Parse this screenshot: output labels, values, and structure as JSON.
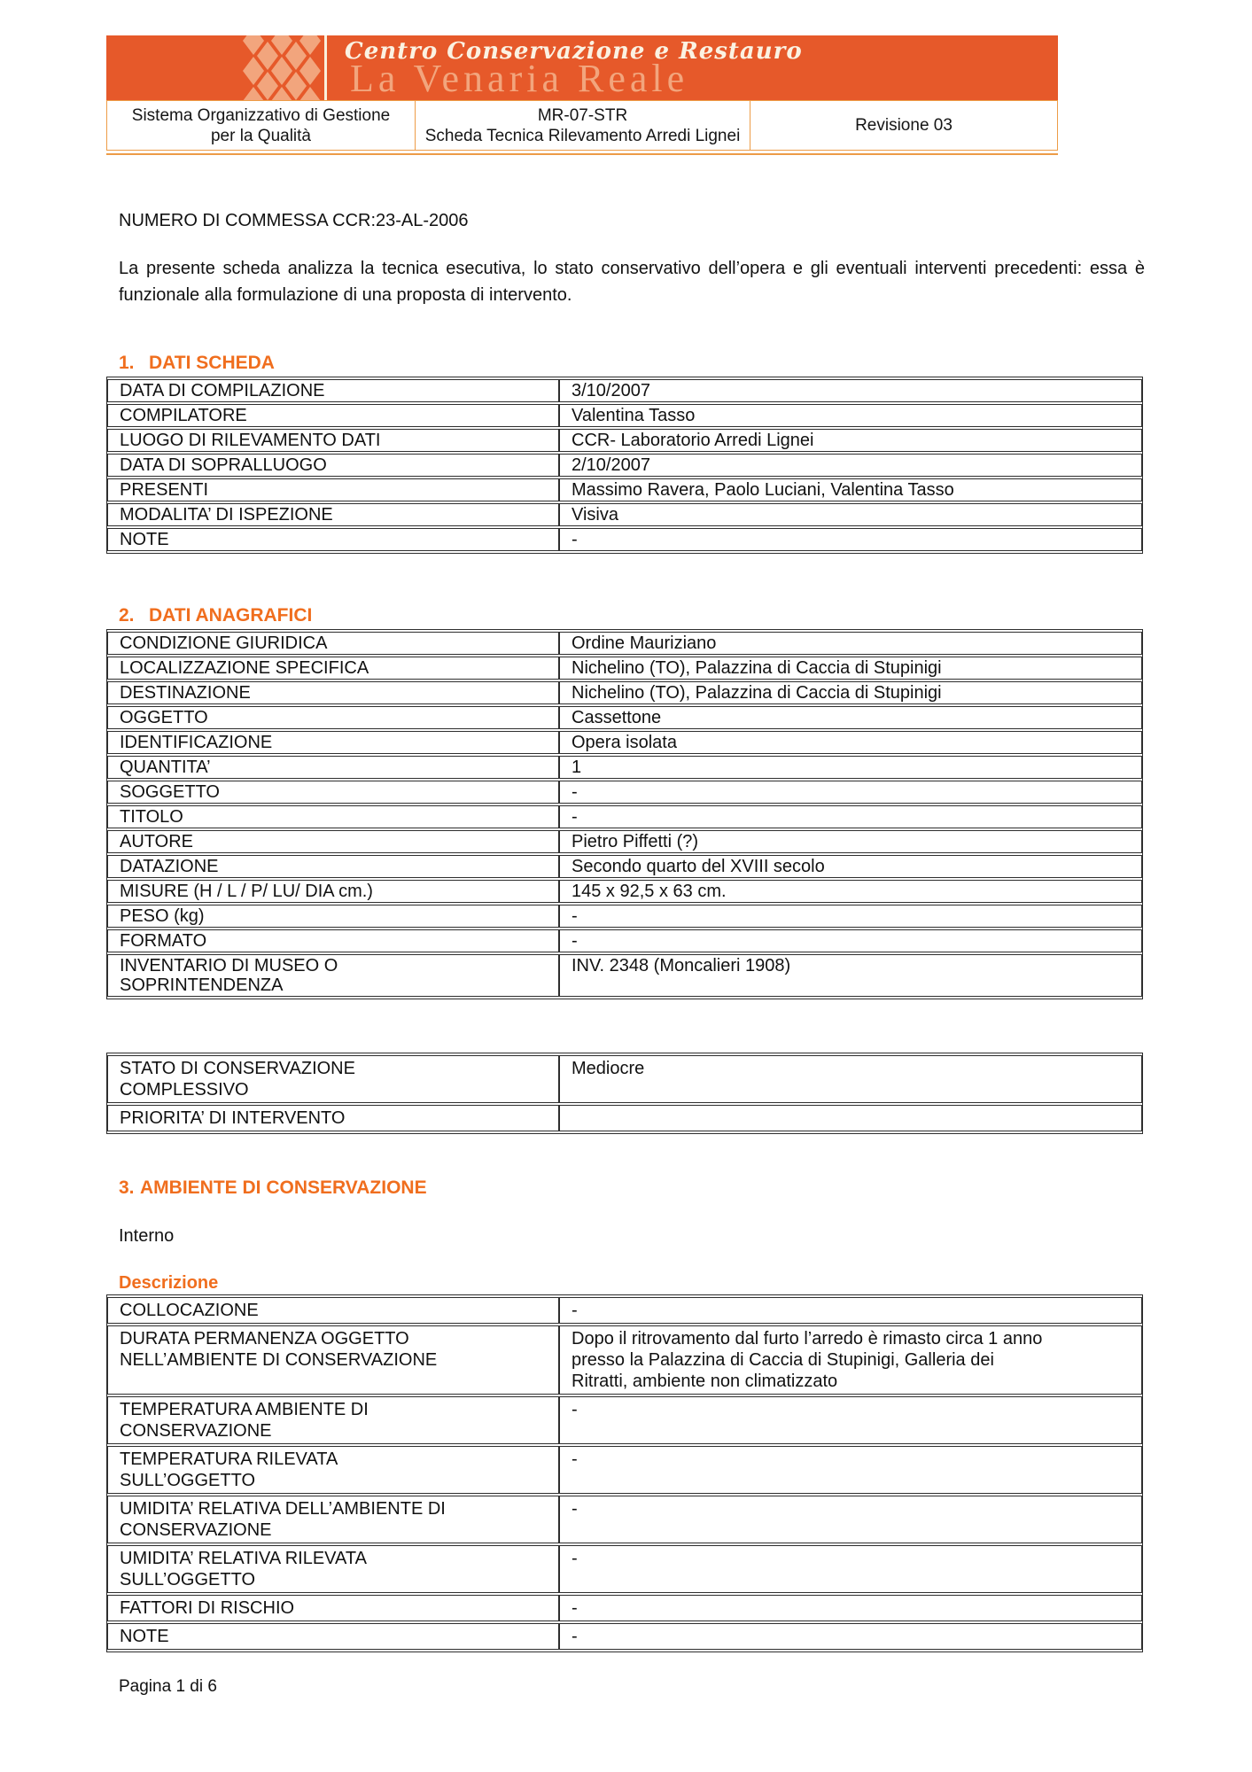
{
  "colors": {
    "banner_orange": "#E6592A",
    "accent_orange": "#F06E1E",
    "header_border_orange": "#ED9C47",
    "diamond_peach": "#F2A57D",
    "brand_cream": "#FBF2E2",
    "table_border": "#2E2E2E"
  },
  "header": {
    "brand_top": "Centro Conservazione e Restauro",
    "brand_bottom": "La Venaria Reale",
    "logo_icon": "diamond-checker-pattern",
    "info": {
      "left_line1": "Sistema Organizzativo di Gestione",
      "left_line2": "per la Qualità",
      "center_line1": "MR-07-STR",
      "center_line2": "Scheda Tecnica Rilevamento Arredi Lignei",
      "right": "Revisione 03"
    }
  },
  "intro": {
    "commessa": "NUMERO DI COMMESSA CCR:23-AL-2006",
    "description": "La presente scheda analizza la tecnica esecutiva, lo stato conservativo dell’opera e gli eventuali interventi precedenti: essa è funzionale alla formulazione di una proposta di intervento."
  },
  "section1": {
    "number": "1.",
    "title": "DATI SCHEDA",
    "rows": [
      [
        "DATA DI COMPILAZIONE",
        "3/10/2007"
      ],
      [
        "COMPILATORE",
        "Valentina Tasso"
      ],
      [
        "LUOGO DI RILEVAMENTO DATI",
        "CCR- Laboratorio Arredi Lignei"
      ],
      [
        "DATA DI SOPRALLUOGO",
        "2/10/2007"
      ],
      [
        "PRESENTI",
        "Massimo Ravera, Paolo Luciani, Valentina Tasso"
      ],
      [
        "MODALITA’ DI ISPEZIONE",
        "Visiva"
      ],
      [
        "NOTE",
        "-"
      ]
    ]
  },
  "section2": {
    "number": "2.",
    "title": "DATI ANAGRAFICI",
    "rows": [
      [
        "CONDIZIONE GIURIDICA",
        "Ordine Mauriziano"
      ],
      [
        "LOCALIZZAZIONE SPECIFICA",
        "Nichelino (TO), Palazzina di Caccia di Stupinigi"
      ],
      [
        "DESTINAZIONE",
        "Nichelino (TO), Palazzina di Caccia di Stupinigi"
      ],
      [
        "OGGETTO",
        "Cassettone"
      ],
      [
        "IDENTIFICAZIONE",
        "Opera isolata"
      ],
      [
        "QUANTITA’",
        "1"
      ],
      [
        "SOGGETTO",
        "-"
      ],
      [
        "TITOLO",
        "-"
      ],
      [
        "AUTORE",
        "Pietro Piffetti (?)"
      ],
      [
        "DATAZIONE",
        "Secondo quarto del XVIII secolo"
      ],
      [
        "MISURE (H / L / P/ LU/ DIA cm.)",
        "145 x 92,5 x 63 cm."
      ],
      [
        "PESO (kg)",
        "-"
      ],
      [
        "FORMATO",
        "-"
      ],
      [
        "INVENTARIO DI MUSEO O\nSOPRINTENDENZA",
        "INV. 2348 (Moncalieri 1908)"
      ]
    ]
  },
  "condition": {
    "rows": [
      [
        "STATO DI CONSERVAZIONE\nCOMPLESSIVO",
        "Mediocre"
      ],
      [
        "PRIORITA’ DI INTERVENTO",
        ""
      ]
    ]
  },
  "section3": {
    "number": "3.",
    "title": "AMBIENTE DI CONSERVAZIONE",
    "environment": "Interno",
    "subheading": "Descrizione",
    "rows": [
      [
        "COLLOCAZIONE",
        "-"
      ],
      [
        "DURATA PERMANENZA OGGETTO\nNELL’AMBIENTE DI CONSERVAZIONE",
        "Dopo il ritrovamento dal furto l’arredo è rimasto circa 1 anno\npresso la Palazzina di Caccia di Stupinigi, Galleria dei\nRitratti, ambiente non climatizzato"
      ],
      [
        "TEMPERATURA AMBIENTE DI\nCONSERVAZIONE",
        "-"
      ],
      [
        "TEMPERATURA RILEVATA\nSULL’OGGETTO",
        "-"
      ],
      [
        "UMIDITA’ RELATIVA DELL’AMBIENTE DI\nCONSERVAZIONE",
        "-"
      ],
      [
        "UMIDITA’ RELATIVA RILEVATA\nSULL’OGGETTO",
        "-"
      ],
      [
        "FATTORI DI RISCHIO",
        "-"
      ],
      [
        "NOTE",
        "-"
      ]
    ]
  },
  "footer": {
    "page": "Pagina 1 di 6"
  }
}
